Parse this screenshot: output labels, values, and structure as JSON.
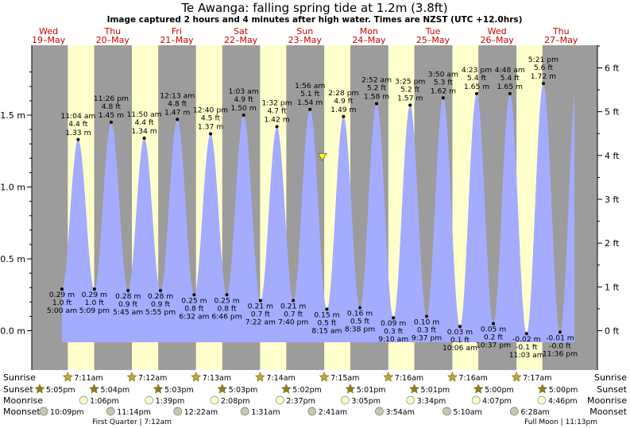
{
  "page": {
    "title": "Te Awanga: falling  spring tide at 1.2m (3.8ft)",
    "subtitle": "Image captured 2 hours and 4 minutes after high water. Times are NZST (UTC +12.0hrs)"
  },
  "chart_data": {
    "type": "area",
    "title": "Te Awanga: falling  spring tide at 1.2m (3.8ft)",
    "subtitle": "Image captured 2 hours and 4 minutes after high water. Times are NZST (UTC +12.0hrs)",
    "x_unit": "hours since Wed 19-May 00:00",
    "ylim": [
      -0.08,
      1.85
    ],
    "y_ticks_m": [
      0.0,
      0.5,
      1.0,
      1.5
    ],
    "y_tick_labels_m": [
      "0.0 m",
      "0.5 m",
      "1.0 m",
      "1.5 m"
    ],
    "y_ticks_ft": [
      0,
      1,
      2,
      3,
      4,
      5,
      6
    ],
    "y_tick_labels_ft": [
      "0 ft",
      "1 ft",
      "2 ft",
      "3 ft",
      "4 ft",
      "5 ft",
      "6 ft"
    ],
    "grid": false,
    "current": {
      "t": 102.5,
      "height_m": 1.2,
      "label": "1.2m (3.8ft)"
    },
    "days": [
      {
        "dow": "Wed",
        "date": "19–May"
      },
      {
        "dow": "Thu",
        "date": "20–May"
      },
      {
        "dow": "Fri",
        "date": "21–May"
      },
      {
        "dow": "Sat",
        "date": "22–May"
      },
      {
        "dow": "Sun",
        "date": "23–May"
      },
      {
        "dow": "Mon",
        "date": "24–May"
      },
      {
        "dow": "Tue",
        "date": "25–May"
      },
      {
        "dow": "Wed",
        "date": "26–May"
      },
      {
        "dow": "Thu",
        "date": "27–May"
      }
    ],
    "daylight": [
      {
        "sunrise": 7.18,
        "sunset": 17.08
      },
      {
        "sunrise": 31.2,
        "sunset": 41.07
      },
      {
        "sunrise": 55.22,
        "sunset": 65.05
      },
      {
        "sunrise": 79.23,
        "sunset": 89.05
      },
      {
        "sunrise": 103.25,
        "sunset": 113.03
      },
      {
        "sunrise": 127.27,
        "sunset": 137.02
      },
      {
        "sunrise": 151.27,
        "sunset": 161.0
      },
      {
        "sunrise": 175.28,
        "sunset": 184.98
      }
    ],
    "tides": [
      {
        "t": 5.0,
        "type": "low",
        "time": "5:00 am",
        "m": 0.29,
        "ft": "1.0 ft",
        "ml": "0.29 m"
      },
      {
        "t": 11.07,
        "type": "high",
        "time": "11:04 am",
        "m": 1.33,
        "ft": "4.4 ft",
        "ml": "1.33 m"
      },
      {
        "t": 17.15,
        "type": "low",
        "time": "5:09 pm",
        "m": 0.29,
        "ft": "1.0 ft",
        "ml": "0.29 m"
      },
      {
        "t": 23.43,
        "type": "high",
        "time": "11:26 pm",
        "m": 1.45,
        "ft": "4.8 ft",
        "ml": "1.45 m"
      },
      {
        "t": 29.75,
        "type": "low",
        "time": "5:45 am",
        "m": 0.28,
        "ft": "0.9 ft",
        "ml": "0.28 m"
      },
      {
        "t": 35.83,
        "type": "high",
        "time": "11:50 am",
        "m": 1.34,
        "ft": "4.4 ft",
        "ml": "1.34 m"
      },
      {
        "t": 41.92,
        "type": "low",
        "time": "5:55 pm",
        "m": 0.28,
        "ft": "0.9 ft",
        "ml": "0.28 m"
      },
      {
        "t": 48.22,
        "type": "high",
        "time": "12:13 am",
        "m": 1.47,
        "ft": "4.8 ft",
        "ml": "1.47 m"
      },
      {
        "t": 54.53,
        "type": "low",
        "time": "6:32 am",
        "m": 0.25,
        "ft": "0.8 ft",
        "ml": "0.25 m"
      },
      {
        "t": 60.67,
        "type": "high",
        "time": "12:40 pm",
        "m": 1.37,
        "ft": "4.5 ft",
        "ml": "1.37 m"
      },
      {
        "t": 66.77,
        "type": "low",
        "time": "6:46 pm",
        "m": 0.25,
        "ft": "0.8 ft",
        "ml": "0.25 m"
      },
      {
        "t": 73.05,
        "type": "high",
        "time": "1:03 am",
        "m": 1.5,
        "ft": "4.9 ft",
        "ml": "1.50 m"
      },
      {
        "t": 79.37,
        "type": "low",
        "time": "7:22 am",
        "m": 0.21,
        "ft": "0.7 ft",
        "ml": "0.21 m"
      },
      {
        "t": 85.53,
        "type": "high",
        "time": "1:32 pm",
        "m": 1.42,
        "ft": "4.7 ft",
        "ml": "1.42 m"
      },
      {
        "t": 91.67,
        "type": "low",
        "time": "7:40 pm",
        "m": 0.21,
        "ft": "0.7 ft",
        "ml": "0.21 m"
      },
      {
        "t": 97.93,
        "type": "high",
        "time": "1:56 am",
        "m": 1.54,
        "ft": "5.1 ft",
        "ml": "1.54 m"
      },
      {
        "t": 104.25,
        "type": "low",
        "time": "8:15 am",
        "m": 0.15,
        "ft": "0.5 ft",
        "ml": "0.15 m"
      },
      {
        "t": 110.47,
        "type": "high",
        "time": "2:28 pm",
        "m": 1.49,
        "ft": "4.9 ft",
        "ml": "1.49 m"
      },
      {
        "t": 116.63,
        "type": "low",
        "time": "8:38 pm",
        "m": 0.16,
        "ft": "0.5 ft",
        "ml": "0.16 m"
      },
      {
        "t": 122.87,
        "type": "high",
        "time": "2:52 am",
        "m": 1.58,
        "ft": "5.2 ft",
        "ml": "1.58 m"
      },
      {
        "t": 129.17,
        "type": "low",
        "time": "9:10 am",
        "m": 0.09,
        "ft": "0.3 ft",
        "ml": "0.09 m"
      },
      {
        "t": 135.42,
        "type": "high",
        "time": "3:25 pm",
        "m": 1.57,
        "ft": "5.2 ft",
        "ml": "1.57 m"
      },
      {
        "t": 141.62,
        "type": "low",
        "time": "9:37 pm",
        "m": 0.1,
        "ft": "0.3 ft",
        "ml": "0.10 m"
      },
      {
        "t": 147.83,
        "type": "high",
        "time": "3:50 am",
        "m": 1.62,
        "ft": "5.3 ft",
        "ml": "1.62 m"
      },
      {
        "t": 154.1,
        "type": "low",
        "time": "10:06 am",
        "m": 0.03,
        "ft": "0.1 ft",
        "ml": "0.03 m"
      },
      {
        "t": 160.38,
        "type": "high",
        "time": "4:23 pm",
        "m": 1.65,
        "ft": "5.4 ft",
        "ml": "1.65 m"
      },
      {
        "t": 166.62,
        "type": "low",
        "time": "10:37 pm",
        "m": 0.05,
        "ft": "0.2 ft",
        "ml": "0.05 m"
      },
      {
        "t": 172.8,
        "type": "high",
        "time": "4:48 am",
        "m": 1.65,
        "ft": "5.4 ft",
        "ml": "1.65 m"
      },
      {
        "t": 179.05,
        "type": "low",
        "time": "11:03 am",
        "m": -0.02,
        "ft": "-0.1 ft",
        "ml": "-0.02 m"
      },
      {
        "t": 185.35,
        "type": "high",
        "time": "5:21 pm",
        "m": 1.72,
        "ft": "5.6 ft",
        "ml": "1.72 m"
      },
      {
        "t": 191.6,
        "type": "low",
        "time": "11:36 pm",
        "m": -0.01,
        "ft": "-0.0 ft",
        "ml": "-0.01 m"
      }
    ],
    "rows": [
      {
        "label": "Sunrise",
        "marker": "sun",
        "items": [
          {
            "t": 7.18,
            "text": "7:11am"
          },
          {
            "t": 31.2,
            "text": "7:12am"
          },
          {
            "t": 55.22,
            "text": "7:13am"
          },
          {
            "t": 79.23,
            "text": "7:14am"
          },
          {
            "t": 103.25,
            "text": "7:15am"
          },
          {
            "t": 127.27,
            "text": "7:16am"
          },
          {
            "t": 151.27,
            "text": "7:16am"
          },
          {
            "t": 175.28,
            "text": "7:17am"
          }
        ]
      },
      {
        "label": "Sunset",
        "marker": "sunset",
        "items": [
          {
            "t": -6.92,
            "text": "5:05pm"
          },
          {
            "t": 17.07,
            "text": "5:04pm"
          },
          {
            "t": 41.05,
            "text": "5:03pm"
          },
          {
            "t": 65.05,
            "text": "5:03pm"
          },
          {
            "t": 89.03,
            "text": "5:02pm"
          },
          {
            "t": 113.02,
            "text": "5:01pm"
          },
          {
            "t": 137.02,
            "text": "5:01pm"
          },
          {
            "t": 161.0,
            "text": "5:00pm"
          },
          {
            "t": 185.0,
            "text": "5:00pm"
          }
        ]
      },
      {
        "label": "Moonrise",
        "marker": "moonrise",
        "items": [
          {
            "t": 13.1,
            "text": "1:06pm"
          },
          {
            "t": 37.65,
            "text": "1:39pm"
          },
          {
            "t": 62.13,
            "text": "2:08pm"
          },
          {
            "t": 86.62,
            "text": "2:37pm"
          },
          {
            "t": 111.08,
            "text": "3:05pm"
          },
          {
            "t": 135.57,
            "text": "3:34pm"
          },
          {
            "t": 160.12,
            "text": "4:07pm"
          },
          {
            "t": 184.77,
            "text": "4:46pm"
          }
        ]
      },
      {
        "label": "Moonset",
        "marker": "moonset",
        "items": [
          {
            "t": -1.85,
            "text": "10:09pm"
          },
          {
            "t": 23.23,
            "text": "11:14pm"
          },
          {
            "t": 48.37,
            "text": "12:22am"
          },
          {
            "t": 73.52,
            "text": "1:31am"
          },
          {
            "t": 98.68,
            "text": "2:41am"
          },
          {
            "t": 123.9,
            "text": "3:54am"
          },
          {
            "t": 149.17,
            "text": "5:10am"
          },
          {
            "t": 174.47,
            "text": "6:28am"
          }
        ]
      }
    ],
    "moon_phases": [
      {
        "t": 31.2,
        "text": "First Quarter | 7:12am"
      },
      {
        "t": 191.22,
        "text": "Full Moon | 11:13pm"
      }
    ],
    "colors": {
      "night": "#9c9c9c",
      "day": "#ffffcc",
      "water": "#a3acff",
      "marker": "#ffff00",
      "day_label": "#cc0000",
      "sun": "#c8a820",
      "moon": "#c8c8a0"
    }
  }
}
